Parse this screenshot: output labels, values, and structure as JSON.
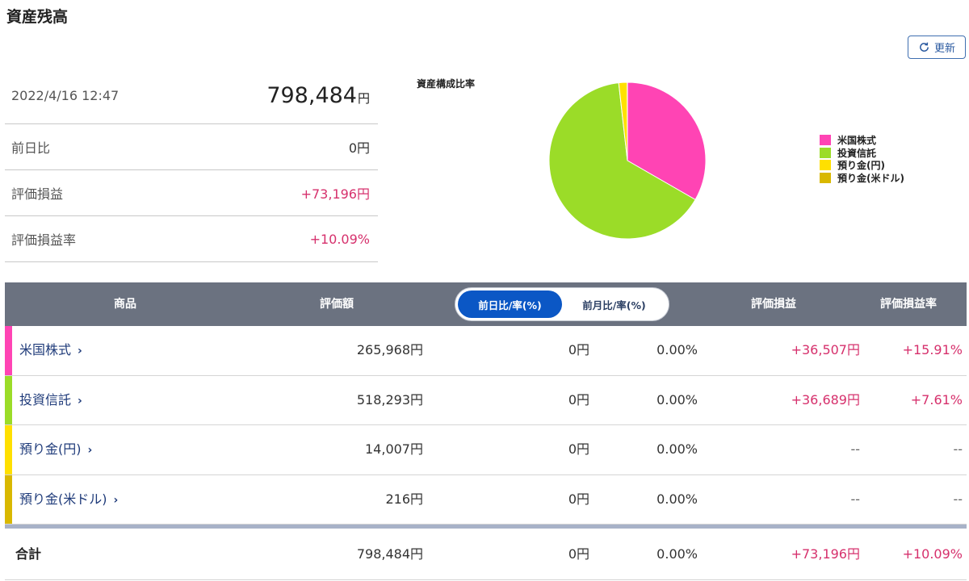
{
  "header": {
    "title": "資産残高",
    "refresh_label": "更新"
  },
  "summary": {
    "datetime": "2022/4/16 12:47",
    "total_value": "798,484",
    "total_unit": "円",
    "rows": [
      {
        "label": "前日比",
        "value": "0円"
      },
      {
        "label": "評価損益",
        "value": "+73,196円"
      },
      {
        "label": "評価損益率",
        "value": "+10.09%"
      }
    ]
  },
  "chart_data": {
    "type": "pie",
    "title": "資産構成比率",
    "labels": [
      "米国株式",
      "投資信託",
      "預り金(円)",
      "預り金(米ドル)"
    ],
    "values": [
      265968,
      518293,
      14007,
      216
    ],
    "colors": [
      "#ff44b4",
      "#9bdc28",
      "#ffe000",
      "#d9b800"
    ],
    "legend_position": "right"
  },
  "table": {
    "headers": {
      "product": "商品",
      "valuation": "評価額",
      "pnl": "評価損益",
      "pnl_rate": "評価損益率"
    },
    "toggle": {
      "options": [
        "前日比/率(%)",
        "前月比/率(%)"
      ],
      "active_index": 0
    },
    "rows": [
      {
        "name": "米国株式",
        "color": "#ff44b4",
        "valuation": "265,968円",
        "diff": "0円",
        "rate": "0.00%",
        "pnl": "+36,507円",
        "pnl_rate": "+15.91%"
      },
      {
        "name": "投資信託",
        "color": "#9bdc28",
        "valuation": "518,293円",
        "diff": "0円",
        "rate": "0.00%",
        "pnl": "+36,689円",
        "pnl_rate": "+7.61%"
      },
      {
        "name": "預り金(円)",
        "color": "#ffe000",
        "valuation": "14,007円",
        "diff": "0円",
        "rate": "0.00%",
        "pnl": "--",
        "pnl_rate": "--"
      },
      {
        "name": "預り金(米ドル)",
        "color": "#d9b800",
        "valuation": "216円",
        "diff": "0円",
        "rate": "0.00%",
        "pnl": "--",
        "pnl_rate": "--"
      }
    ],
    "total": {
      "label": "合計",
      "valuation": "798,484円",
      "diff": "0円",
      "rate": "0.00%",
      "pnl": "+73,196円",
      "pnl_rate": "+10.09%"
    },
    "chevron": "›"
  }
}
